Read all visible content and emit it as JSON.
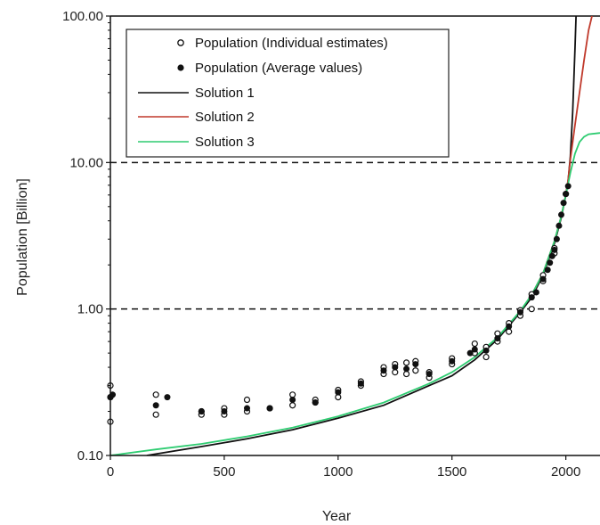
{
  "chart_data": {
    "type": "scatter",
    "xlabel": "Year",
    "ylabel": "Population [Billion]",
    "xlim": [
      0,
      2150
    ],
    "ylim": [
      0.1,
      100
    ],
    "yscale": "log",
    "x_ticks": [
      "0",
      "500",
      "1000",
      "1500",
      "2000"
    ],
    "y_ticks": [
      "0.10",
      "1.00",
      "10.00",
      "100.00"
    ],
    "reference_lines": [
      1,
      10,
      100
    ],
    "grid": false,
    "legend_position": "top-left",
    "legend": [
      "Population (Individual estimates)",
      "Population (Average values)",
      "Solution 1",
      "Solution 2",
      "Solution 3"
    ],
    "series": [
      {
        "name": "Population (Individual estimates)",
        "kind": "open-marker",
        "points": [
          [
            0,
            0.17
          ],
          [
            0,
            0.25
          ],
          [
            0,
            0.3
          ],
          [
            200,
            0.19
          ],
          [
            200,
            0.26
          ],
          [
            400,
            0.19
          ],
          [
            400,
            0.2
          ],
          [
            500,
            0.19
          ],
          [
            500,
            0.21
          ],
          [
            600,
            0.2
          ],
          [
            600,
            0.24
          ],
          [
            700,
            0.21
          ],
          [
            800,
            0.22
          ],
          [
            800,
            0.26
          ],
          [
            900,
            0.23
          ],
          [
            900,
            0.24
          ],
          [
            1000,
            0.25
          ],
          [
            1000,
            0.28
          ],
          [
            1100,
            0.3
          ],
          [
            1100,
            0.32
          ],
          [
            1200,
            0.36
          ],
          [
            1200,
            0.4
          ],
          [
            1250,
            0.37
          ],
          [
            1250,
            0.42
          ],
          [
            1300,
            0.36
          ],
          [
            1300,
            0.43
          ],
          [
            1340,
            0.38
          ],
          [
            1340,
            0.44
          ],
          [
            1400,
            0.34
          ],
          [
            1400,
            0.37
          ],
          [
            1500,
            0.42
          ],
          [
            1500,
            0.46
          ],
          [
            1600,
            0.5
          ],
          [
            1600,
            0.58
          ],
          [
            1650,
            0.47
          ],
          [
            1650,
            0.55
          ],
          [
            1700,
            0.6
          ],
          [
            1700,
            0.68
          ],
          [
            1750,
            0.7
          ],
          [
            1750,
            0.8
          ],
          [
            1800,
            0.9
          ],
          [
            1800,
            0.98
          ],
          [
            1850,
            1.0
          ],
          [
            1850,
            1.26
          ],
          [
            1900,
            1.55
          ],
          [
            1900,
            1.7
          ],
          [
            1950,
            2.4
          ],
          [
            1950,
            2.6
          ],
          [
            2000,
            6.1
          ]
        ]
      },
      {
        "name": "Population (Average values)",
        "kind": "filled-marker",
        "points": [
          [
            0,
            0.25
          ],
          [
            10,
            0.26
          ],
          [
            200,
            0.22
          ],
          [
            250,
            0.25
          ],
          [
            400,
            0.2
          ],
          [
            500,
            0.2
          ],
          [
            600,
            0.21
          ],
          [
            700,
            0.21
          ],
          [
            800,
            0.24
          ],
          [
            900,
            0.23
          ],
          [
            1000,
            0.27
          ],
          [
            1100,
            0.31
          ],
          [
            1200,
            0.38
          ],
          [
            1250,
            0.4
          ],
          [
            1300,
            0.39
          ],
          [
            1340,
            0.42
          ],
          [
            1400,
            0.36
          ],
          [
            1500,
            0.44
          ],
          [
            1580,
            0.5
          ],
          [
            1600,
            0.53
          ],
          [
            1650,
            0.52
          ],
          [
            1700,
            0.63
          ],
          [
            1750,
            0.76
          ],
          [
            1800,
            0.95
          ],
          [
            1850,
            1.2
          ],
          [
            1870,
            1.3
          ],
          [
            1900,
            1.6
          ],
          [
            1920,
            1.85
          ],
          [
            1930,
            2.07
          ],
          [
            1940,
            2.3
          ],
          [
            1950,
            2.53
          ],
          [
            1960,
            3.0
          ],
          [
            1970,
            3.7
          ],
          [
            1980,
            4.4
          ],
          [
            1990,
            5.3
          ],
          [
            2000,
            6.1
          ],
          [
            2010,
            6.9
          ]
        ]
      },
      {
        "name": "Solution 1",
        "kind": "line",
        "color": "#111111",
        "points": [
          [
            160,
            0.1
          ],
          [
            400,
            0.115
          ],
          [
            600,
            0.13
          ],
          [
            800,
            0.15
          ],
          [
            1000,
            0.18
          ],
          [
            1200,
            0.22
          ],
          [
            1400,
            0.3
          ],
          [
            1500,
            0.35
          ],
          [
            1600,
            0.45
          ],
          [
            1700,
            0.62
          ],
          [
            1800,
            0.95
          ],
          [
            1850,
            1.2
          ],
          [
            1900,
            1.7
          ],
          [
            1950,
            2.8
          ],
          [
            1980,
            4.2
          ],
          [
            2000,
            6.0
          ],
          [
            2010,
            7.5
          ],
          [
            2020,
            11
          ],
          [
            2030,
            22
          ],
          [
            2040,
            60
          ],
          [
            2045,
            100
          ]
        ]
      },
      {
        "name": "Solution 2",
        "kind": "line",
        "color": "#c0392b",
        "points": [
          [
            1850,
            1.25
          ],
          [
            1900,
            1.75
          ],
          [
            1950,
            2.9
          ],
          [
            1980,
            4.3
          ],
          [
            2000,
            6.0
          ],
          [
            2010,
            7.6
          ],
          [
            2020,
            10.5
          ],
          [
            2040,
            18
          ],
          [
            2060,
            30
          ],
          [
            2080,
            50
          ],
          [
            2100,
            80
          ],
          [
            2115,
            100
          ]
        ]
      },
      {
        "name": "Solution 3",
        "kind": "line",
        "color": "#2ecc71",
        "points": [
          [
            0,
            0.1
          ],
          [
            200,
            0.11
          ],
          [
            400,
            0.12
          ],
          [
            600,
            0.135
          ],
          [
            800,
            0.155
          ],
          [
            1000,
            0.185
          ],
          [
            1200,
            0.23
          ],
          [
            1400,
            0.31
          ],
          [
            1500,
            0.37
          ],
          [
            1600,
            0.47
          ],
          [
            1700,
            0.64
          ],
          [
            1800,
            0.97
          ],
          [
            1850,
            1.25
          ],
          [
            1900,
            1.75
          ],
          [
            1950,
            2.9
          ],
          [
            1980,
            4.3
          ],
          [
            2000,
            6.0
          ],
          [
            2020,
            8.5
          ],
          [
            2040,
            11.5
          ],
          [
            2060,
            13.8
          ],
          [
            2080,
            15
          ],
          [
            2100,
            15.6
          ],
          [
            2150,
            15.9
          ]
        ]
      }
    ]
  }
}
